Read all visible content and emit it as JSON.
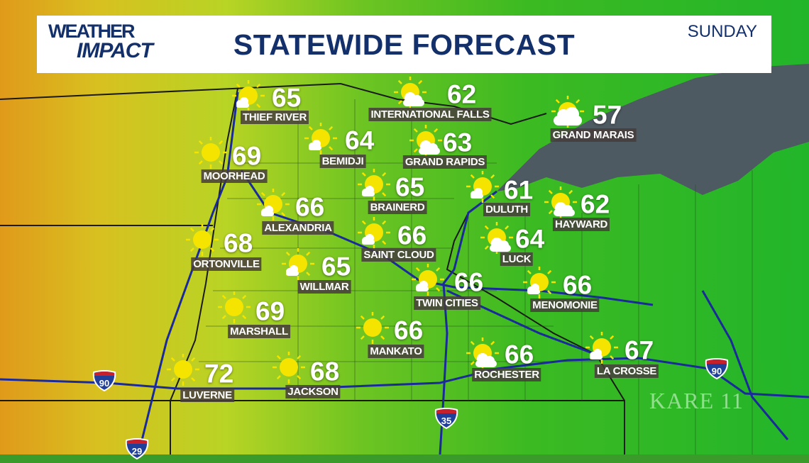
{
  "header": {
    "logo_line1": "WEATHER",
    "logo_line2": "IMPACT",
    "title": "STATEWIDE FORECAST",
    "day": "SUNDAY"
  },
  "colors": {
    "header_text": "#13306b",
    "sun": "#f5e400",
    "highway": "#1a2a9a",
    "label_bg": "#463c3c"
  },
  "cities": [
    {
      "name": "THIEF RIVER",
      "temp": "65",
      "icon": "mostly-sunny"
    },
    {
      "name": "INTERNATIONAL FALLS",
      "temp": "62",
      "icon": "partly-cloudy"
    },
    {
      "name": "GRAND MARAIS",
      "temp": "57",
      "icon": "mostly-cloudy"
    },
    {
      "name": "BEMIDJI",
      "temp": "64",
      "icon": "mostly-sunny"
    },
    {
      "name": "GRAND RAPIDS",
      "temp": "63",
      "icon": "partly-cloudy"
    },
    {
      "name": "MOORHEAD",
      "temp": "69",
      "icon": "sunny"
    },
    {
      "name": "BRAINERD",
      "temp": "65",
      "icon": "mostly-sunny"
    },
    {
      "name": "DULUTH",
      "temp": "61",
      "icon": "mostly-sunny"
    },
    {
      "name": "HAYWARD",
      "temp": "62",
      "icon": "partly-cloudy"
    },
    {
      "name": "ALEXANDRIA",
      "temp": "66",
      "icon": "mostly-sunny"
    },
    {
      "name": "SAINT CLOUD",
      "temp": "66",
      "icon": "mostly-sunny"
    },
    {
      "name": "LUCK",
      "temp": "64",
      "icon": "partly-cloudy"
    },
    {
      "name": "ORTONVILLE",
      "temp": "68",
      "icon": "sunny"
    },
    {
      "name": "WILLMAR",
      "temp": "65",
      "icon": "mostly-sunny"
    },
    {
      "name": "TWIN CITIES",
      "temp": "66",
      "icon": "mostly-sunny"
    },
    {
      "name": "MENOMONIE",
      "temp": "66",
      "icon": "mostly-sunny"
    },
    {
      "name": "MARSHALL",
      "temp": "69",
      "icon": "sunny"
    },
    {
      "name": "MANKATO",
      "temp": "66",
      "icon": "sunny"
    },
    {
      "name": "ROCHESTER",
      "temp": "66",
      "icon": "partly-cloudy"
    },
    {
      "name": "LA CROSSE",
      "temp": "67",
      "icon": "mostly-sunny"
    },
    {
      "name": "LUVERNE",
      "temp": "72",
      "icon": "sunny"
    },
    {
      "name": "JACKSON",
      "temp": "68",
      "icon": "sunny"
    }
  ],
  "highways": [
    {
      "label": "90",
      "icon": "interstate-shield-icon"
    },
    {
      "label": "90",
      "icon": "interstate-shield-icon"
    },
    {
      "label": "35",
      "icon": "interstate-shield-icon"
    },
    {
      "label": "29",
      "icon": "interstate-shield-icon"
    }
  ],
  "watermark": "KARE 11"
}
